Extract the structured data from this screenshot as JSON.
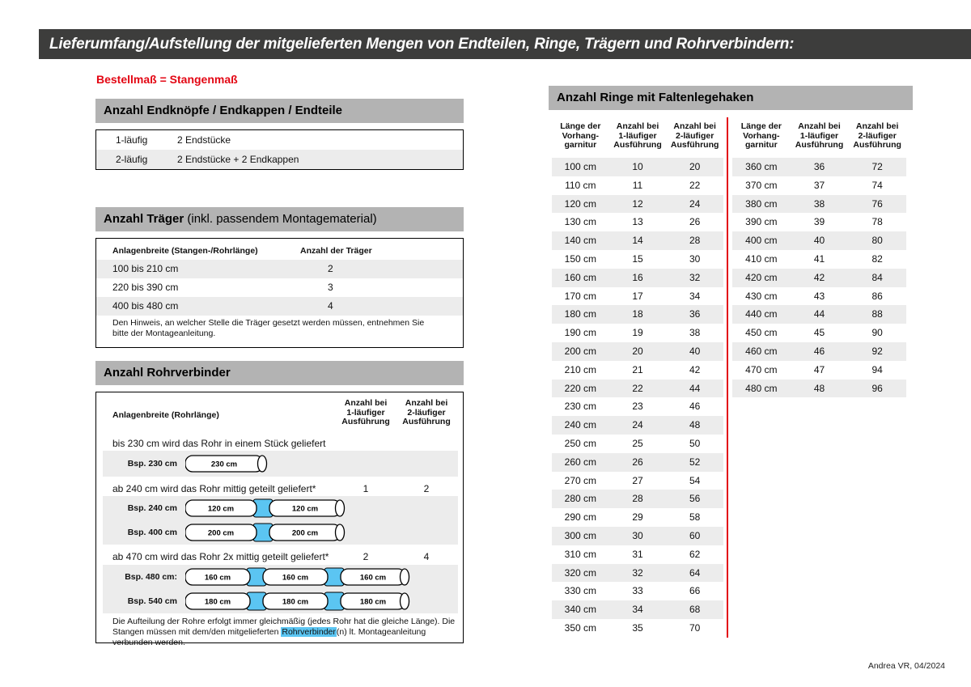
{
  "page": {
    "title": "Lieferumfang/Aufstellung der mitgelieferten Mengen von Endteilen, Ringe, Trägern und Rohrverbindern:",
    "subtitle": "Bestellmaß = Stangenmaß",
    "credit": "Andrea VR, 04/2024"
  },
  "colors": {
    "accent_red": "#e30613",
    "connector_blue": "#5bc5f2",
    "titlebar_dark": "#3d3d3c",
    "section_header_gray": "#b3b3b3",
    "row_alt_gray": "#ececec"
  },
  "endteile": {
    "title": "Anzahl Endknöpfe / Endkappen / Endteile",
    "rows": [
      {
        "label": "1-läufig",
        "value": "2 Endstücke"
      },
      {
        "label": "2-läufig",
        "value": "2 Endstücke + 2 Endkappen"
      }
    ]
  },
  "traeger": {
    "title": "Anzahl Träger",
    "title_suffix": " (inkl. passendem Montagematerial)",
    "col1": "Anlagenbreite (Stangen-/Rohrlänge)",
    "col2": "Anzahl der Träger",
    "rows": [
      {
        "range": "100 bis 210 cm",
        "count": "2"
      },
      {
        "range": "220 bis 390 cm",
        "count": "3"
      },
      {
        "range": "400 bis 480 cm",
        "count": "4"
      }
    ],
    "note": "Den Hinweis, an welcher Stelle die Träger gesetzt werden müssen, entnehmen Sie bitte der Montageanleitung."
  },
  "rohrverbinder": {
    "title": "Anzahl Rohrverbinder",
    "col_label": "Anlagenbreite (Rohrlänge)",
    "col_headers": [
      [
        "Anzahl bei",
        "1-läufiger",
        "Ausführung"
      ],
      [
        "Anzahl bei",
        "2-läufiger",
        "Ausführung"
      ]
    ],
    "sections": [
      {
        "text": "bis 230 cm wird das Rohr in einem Stück geliefert",
        "v1": "-",
        "v2": "-",
        "examples": [
          {
            "label": "Bsp. 230 cm",
            "segments": [
              "230 cm"
            ]
          }
        ]
      },
      {
        "text": "ab 240 cm wird das Rohr mittig geteilt geliefert*",
        "v1": "1",
        "v2": "2",
        "examples": [
          {
            "label": "Bsp. 240 cm",
            "segments": [
              "120 cm",
              "120 cm"
            ]
          },
          {
            "label": "Bsp. 400 cm",
            "segments": [
              "200 cm",
              "200 cm"
            ]
          }
        ]
      },
      {
        "text": "ab 470 cm wird das Rohr 2x mittig geteilt geliefert*",
        "v1": "2",
        "v2": "4",
        "examples": [
          {
            "label": "Bsp. 480 cm:",
            "segments": [
              "160 cm",
              "160 cm",
              "160 cm"
            ]
          },
          {
            "label": "Bsp. 540 cm",
            "segments": [
              "180 cm",
              "180 cm",
              "180 cm"
            ]
          }
        ]
      }
    ],
    "footnote_pre": "Die Aufteilung der Rohre erfolgt immer gleichmäßig (jedes Rohr hat die gleiche Länge). Die Stangen müssen mit dem/den mitgelieferten ",
    "footnote_highlight": "Rohrverbinder",
    "footnote_post": "(n) lt. Montageanleitung verbunden werden."
  },
  "ringe": {
    "title": "Anzahl Ringe mit Faltenlegehaken",
    "col_headers": [
      [
        "Länge der",
        "Vorhang-",
        "garnitur"
      ],
      [
        "Anzahl bei",
        "1-läufiger",
        "Ausführung"
      ],
      [
        "Anzahl bei",
        "2-läufiger",
        "Ausführung"
      ]
    ],
    "table_left": [
      [
        "100 cm",
        "10",
        "20"
      ],
      [
        "110 cm",
        "11",
        "22"
      ],
      [
        "120 cm",
        "12",
        "24"
      ],
      [
        "130 cm",
        "13",
        "26"
      ],
      [
        "140 cm",
        "14",
        "28"
      ],
      [
        "150 cm",
        "15",
        "30"
      ],
      [
        "160 cm",
        "16",
        "32"
      ],
      [
        "170 cm",
        "17",
        "34"
      ],
      [
        "180 cm",
        "18",
        "36"
      ],
      [
        "190 cm",
        "19",
        "38"
      ],
      [
        "200 cm",
        "20",
        "40"
      ],
      [
        "210 cm",
        "21",
        "42"
      ],
      [
        "220 cm",
        "22",
        "44"
      ],
      [
        "230 cm",
        "23",
        "46"
      ],
      [
        "240 cm",
        "24",
        "48"
      ],
      [
        "250 cm",
        "25",
        "50"
      ],
      [
        "260 cm",
        "26",
        "52"
      ],
      [
        "270 cm",
        "27",
        "54"
      ],
      [
        "280 cm",
        "28",
        "56"
      ],
      [
        "290 cm",
        "29",
        "58"
      ],
      [
        "300 cm",
        "30",
        "60"
      ],
      [
        "310 cm",
        "31",
        "62"
      ],
      [
        "320 cm",
        "32",
        "64"
      ],
      [
        "330 cm",
        "33",
        "66"
      ],
      [
        "340 cm",
        "34",
        "68"
      ],
      [
        "350 cm",
        "35",
        "70"
      ]
    ],
    "table_right": [
      [
        "360 cm",
        "36",
        "72"
      ],
      [
        "370 cm",
        "37",
        "74"
      ],
      [
        "380 cm",
        "38",
        "76"
      ],
      [
        "390 cm",
        "39",
        "78"
      ],
      [
        "400 cm",
        "40",
        "80"
      ],
      [
        "410 cm",
        "41",
        "82"
      ],
      [
        "420 cm",
        "42",
        "84"
      ],
      [
        "430 cm",
        "43",
        "86"
      ],
      [
        "440 cm",
        "44",
        "88"
      ],
      [
        "450 cm",
        "45",
        "90"
      ],
      [
        "460 cm",
        "46",
        "92"
      ],
      [
        "470 cm",
        "47",
        "94"
      ],
      [
        "480 cm",
        "48",
        "96"
      ]
    ]
  }
}
